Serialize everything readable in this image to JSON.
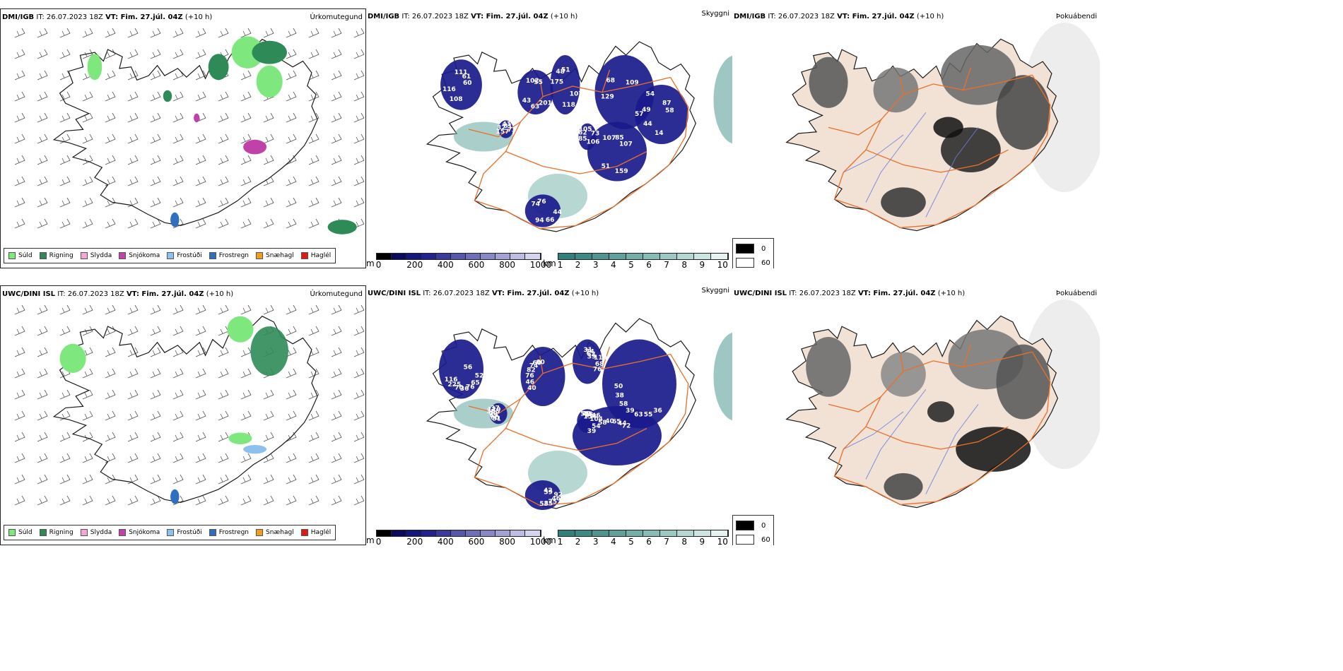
{
  "rows": [
    {
      "precip": {
        "model": "DMI/IGB",
        "it": "IT: 26.07.2023 18Z",
        "vt": "VT: Fim. 27.júl. 04Z",
        "lead": "(+10 h)",
        "title": "Úrkomutegund"
      },
      "visibility": {
        "model": "DMI/IGB",
        "it": "IT: 26.07.2023 18Z",
        "vt": "VT: Fim. 27.júl. 04Z",
        "lead": "(+10 h)",
        "title": "Skyggni",
        "labels": [
          "60",
          "43",
          "51",
          "57",
          "49",
          "107",
          "94",
          "105",
          "73",
          "116",
          "55",
          "118",
          "68",
          "58",
          "51",
          "76",
          "106",
          "32",
          "61",
          "63",
          "48",
          "54",
          "44",
          "85",
          "66",
          "62",
          "81",
          "108",
          "102",
          "107",
          "129",
          "87",
          "159",
          "74",
          "73",
          "157",
          "111",
          "201",
          "175",
          "109",
          "14",
          "107",
          "44",
          "85",
          "41"
        ]
      },
      "fog": {
        "model": "DMI/IGB",
        "it": "IT: 26.07.2023 18Z",
        "vt": "VT: Fim. 27.júl. 04Z",
        "lead": "(+10 h)",
        "title": "Þokuábendi"
      }
    },
    {
      "precip": {
        "model": "UWC/DINI ISL",
        "it": "IT: 26.07.2023 18Z",
        "vt": "VT: Fim. 27.júl. 04Z",
        "lead": "(+10 h)",
        "title": "Úrkomutegund"
      },
      "visibility": {
        "model": "UWC/DINI ISL",
        "it": "IT: 26.07.2023 18Z",
        "vt": "VT: Fim. 27.júl. 04Z",
        "lead": "(+10 h)",
        "title": "Skyggni",
        "labels": [
          "56",
          "40",
          "31",
          "36",
          "39",
          "42",
          "51",
          "51",
          "52",
          "46",
          "74",
          "55",
          "54",
          "59",
          "60",
          "40",
          "65",
          "76",
          "62",
          "63",
          "58",
          "92",
          "69",
          "45",
          "76",
          "82",
          "39",
          "39",
          "40",
          "46",
          "40",
          "36",
          "36",
          "74",
          "110",
          "58",
          "65",
          "75",
          "305",
          "154",
          "70",
          "60",
          "68",
          "38",
          "44",
          "85",
          "120",
          "46",
          "225",
          "60",
          "76",
          "50",
          "72",
          "53",
          "37",
          "104",
          "116"
        ]
      },
      "fog": {
        "model": "UWC/DINI ISL",
        "it": "IT: 26.07.2023 18Z",
        "vt": "VT: Fim. 27.júl. 04Z",
        "lead": "(+10 h)",
        "title": "Þokuábendi"
      }
    }
  ],
  "precip_legend": [
    {
      "label": "Súld",
      "color": "#7ee87e"
    },
    {
      "label": "Rigning",
      "color": "#2e8b57"
    },
    {
      "label": "Slydda",
      "color": "#f4a6d7"
    },
    {
      "label": "Snjókoma",
      "color": "#c042a8"
    },
    {
      "label": "Frostúði",
      "color": "#8ec0ef"
    },
    {
      "label": "Frostregn",
      "color": "#2f6fc0"
    },
    {
      "label": "Snæhagl",
      "color": "#f39c1f"
    },
    {
      "label": "Haglél",
      "color": "#e01818"
    }
  ],
  "ceiling_bar": {
    "unit": "m",
    "ticks": [
      "0",
      "200",
      "400",
      "600",
      "800",
      "1000"
    ],
    "colors": [
      "#000000",
      "#0b0b5e",
      "#15157e",
      "#22228e",
      "#3a3a9e",
      "#5656ac",
      "#6e6eba",
      "#8888c8",
      "#a2a2d6",
      "#bcbce4",
      "#d4d4ef"
    ]
  },
  "vis_bar": {
    "unit": "km",
    "ticks": [
      "1",
      "2",
      "3",
      "4",
      "5",
      "6",
      "7",
      "8",
      "9",
      "10"
    ],
    "colors": [
      "#2f7f7a",
      "#3b8a84",
      "#4c968f",
      "#5ea29b",
      "#72afa8",
      "#87bcb6",
      "#9dc9c4",
      "#b4d7d3",
      "#cce5e2",
      "#e5f2f0"
    ]
  },
  "fog_legend": [
    {
      "label": "0",
      "color": "#000000"
    },
    {
      "label": "60",
      "color": "#ffffff"
    }
  ],
  "colors": {
    "coast": "#1a1a1a",
    "road": "#e8702a",
    "land_fog": "#f2e2d6",
    "river": "#6a7fe0"
  }
}
